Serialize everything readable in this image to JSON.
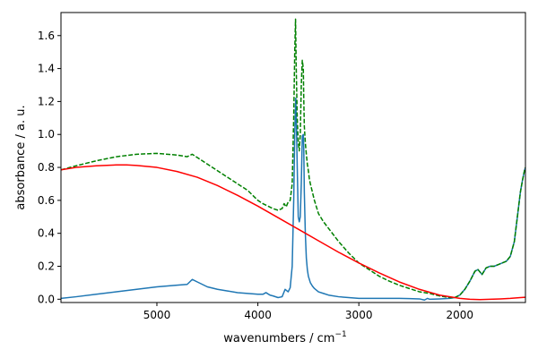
{
  "chart_data": {
    "type": "line",
    "title": "",
    "xlabel": "wavenumbers / cm",
    "xlabel_superscript": "−1",
    "ylabel": "absorbance / a. u.",
    "xlim": [
      5950,
      1350
    ],
    "x_reversed": true,
    "ylim": [
      -0.02,
      1.74
    ],
    "xticks": [
      5000,
      4000,
      3000,
      2000
    ],
    "yticks": [
      0.0,
      0.2,
      0.4,
      0.6,
      0.8,
      1.0,
      1.2,
      1.4,
      1.6
    ],
    "xtick_labels": [
      "5000",
      "4000",
      "3000",
      "2000"
    ],
    "ytick_labels": [
      "0.0",
      "0.2",
      "0.4",
      "0.6",
      "0.8",
      "1.0",
      "1.2",
      "1.4",
      "1.6"
    ],
    "grid": false,
    "series": [
      {
        "color": "#1f77b4",
        "style": "solid",
        "x": [
          5950,
          5800,
          5600,
          5400,
          5200,
          5000,
          4800,
          4700,
          4650,
          4600,
          4500,
          4400,
          4300,
          4200,
          4100,
          4000,
          3950,
          3920,
          3880,
          3850,
          3800,
          3760,
          3730,
          3700,
          3680,
          3660,
          3645,
          3635,
          3625,
          3618,
          3610,
          3600,
          3590,
          3580,
          3570,
          3560,
          3550,
          3545,
          3540,
          3530,
          3520,
          3510,
          3500,
          3480,
          3460,
          3440,
          3400,
          3350,
          3300,
          3200,
          3100,
          3000,
          2900,
          2800,
          2700,
          2600,
          2500,
          2400,
          2350,
          2320,
          2300,
          2200,
          2100,
          2050,
          2000,
          1950,
          1900,
          1850,
          1820,
          1780,
          1740,
          1700,
          1660,
          1620,
          1580,
          1540,
          1500,
          1460,
          1420,
          1400,
          1380,
          1360,
          1350
        ],
        "y": [
          0.005,
          0.015,
          0.03,
          0.045,
          0.06,
          0.075,
          0.085,
          0.09,
          0.12,
          0.105,
          0.075,
          0.06,
          0.05,
          0.04,
          0.035,
          0.03,
          0.03,
          0.04,
          0.025,
          0.02,
          0.01,
          0.015,
          0.06,
          0.045,
          0.07,
          0.2,
          0.6,
          1.0,
          1.22,
          1.05,
          0.8,
          0.5,
          0.47,
          0.5,
          0.7,
          0.99,
          1.0,
          0.9,
          0.65,
          0.4,
          0.25,
          0.18,
          0.14,
          0.1,
          0.08,
          0.065,
          0.045,
          0.035,
          0.025,
          0.015,
          0.01,
          0.005,
          0.005,
          0.005,
          0.005,
          0.005,
          0.004,
          0.002,
          -0.005,
          0.005,
          0.0,
          0.002,
          0.005,
          0.01,
          0.025,
          0.06,
          0.11,
          0.17,
          0.18,
          0.15,
          0.19,
          0.2,
          0.2,
          0.21,
          0.22,
          0.23,
          0.26,
          0.35,
          0.55,
          0.65,
          0.72,
          0.78,
          0.8
        ]
      },
      {
        "color": "#008000",
        "style": "dashed",
        "x": [
          5950,
          5800,
          5600,
          5400,
          5200,
          5000,
          4800,
          4700,
          4650,
          4600,
          4500,
          4400,
          4300,
          4200,
          4100,
          4000,
          3950,
          3900,
          3850,
          3800,
          3760,
          3740,
          3720,
          3700,
          3680,
          3660,
          3645,
          3635,
          3627,
          3620,
          3610,
          3600,
          3590,
          3580,
          3570,
          3560,
          3550,
          3545,
          3540,
          3530,
          3520,
          3510,
          3500,
          3490,
          3480,
          3460,
          3440,
          3420,
          3400,
          3350,
          3300,
          3200,
          3100,
          3000,
          2900,
          2800,
          2700,
          2600,
          2500,
          2400,
          2300,
          2200,
          2100,
          2050,
          2000,
          1950,
          1900,
          1850,
          1820,
          1780,
          1740,
          1700,
          1660,
          1620,
          1580,
          1540,
          1500,
          1460,
          1420,
          1400,
          1380,
          1360,
          1350
        ],
        "y": [
          0.785,
          0.81,
          0.84,
          0.865,
          0.88,
          0.885,
          0.875,
          0.865,
          0.88,
          0.86,
          0.82,
          0.78,
          0.74,
          0.7,
          0.66,
          0.6,
          0.58,
          0.565,
          0.55,
          0.54,
          0.55,
          0.58,
          0.56,
          0.59,
          0.6,
          0.7,
          1.1,
          1.5,
          1.7,
          1.4,
          1.1,
          0.95,
          0.9,
          1.0,
          1.3,
          1.45,
          1.4,
          1.2,
          1.05,
          0.95,
          0.88,
          0.82,
          0.78,
          0.73,
          0.7,
          0.65,
          0.6,
          0.56,
          0.52,
          0.47,
          0.43,
          0.35,
          0.28,
          0.22,
          0.18,
          0.14,
          0.11,
          0.085,
          0.065,
          0.045,
          0.035,
          0.02,
          0.01,
          0.01,
          0.025,
          0.06,
          0.11,
          0.17,
          0.18,
          0.15,
          0.19,
          0.2,
          0.2,
          0.21,
          0.22,
          0.23,
          0.26,
          0.35,
          0.55,
          0.65,
          0.72,
          0.78,
          0.8
        ]
      },
      {
        "color": "#ff0000",
        "style": "solid",
        "x": [
          5950,
          5800,
          5600,
          5400,
          5300,
          5200,
          5000,
          4800,
          4600,
          4400,
          4200,
          4000,
          3800,
          3600,
          3400,
          3200,
          3000,
          2800,
          2600,
          2400,
          2200,
          2000,
          1900,
          1800,
          1700,
          1600,
          1500,
          1400,
          1350
        ],
        "y": [
          0.785,
          0.8,
          0.81,
          0.815,
          0.815,
          0.812,
          0.8,
          0.775,
          0.74,
          0.69,
          0.63,
          0.565,
          0.495,
          0.425,
          0.355,
          0.285,
          0.22,
          0.16,
          0.105,
          0.06,
          0.025,
          0.005,
          0.0,
          -0.002,
          0.0,
          0.002,
          0.005,
          0.01,
          0.012
        ]
      }
    ]
  }
}
